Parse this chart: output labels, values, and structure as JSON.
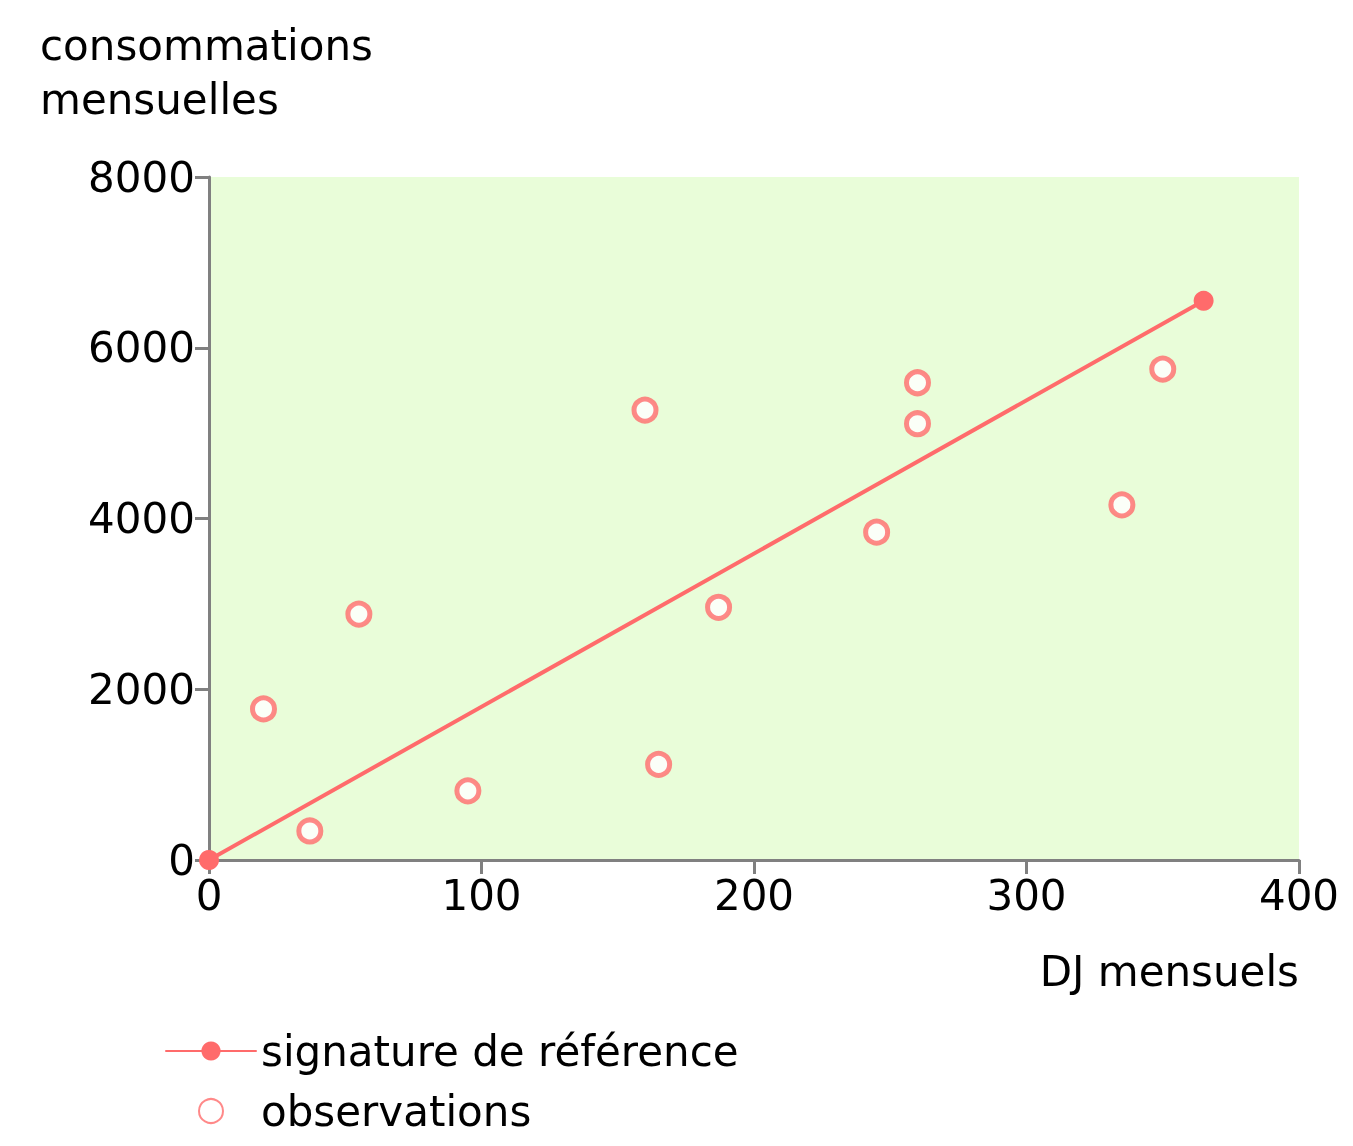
{
  "chart_data": {
    "type": "scatter",
    "ylabel": "consommations mensuelles",
    "xlabel": "DJ mensuels",
    "xlim": [
      0,
      400
    ],
    "xticks": [
      0,
      100,
      200,
      300,
      400
    ],
    "ylim": [
      0,
      8000
    ],
    "yticks": [
      0,
      2000,
      4000,
      6000,
      8000
    ],
    "grid": false,
    "legend": "bottom left",
    "marker": "circle",
    "series": [
      {
        "name": "signature de référence",
        "type": "line",
        "color": "#ff6b6b",
        "x": [
          0,
          365
        ],
        "values": [
          0,
          6550
        ]
      },
      {
        "name": "observations",
        "color": "#ff6b6b",
        "x": [
          20,
          37,
          55,
          95,
          160,
          165,
          187,
          245,
          260,
          260,
          335,
          350
        ],
        "values": [
          1770,
          340,
          2880,
          810,
          5270,
          1120,
          2960,
          3840,
          5590,
          5110,
          4160,
          5750
        ]
      }
    ]
  }
}
